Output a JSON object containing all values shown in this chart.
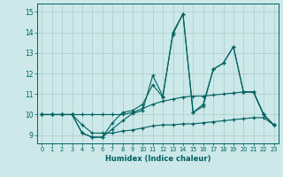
{
  "background_color": "#cce8e8",
  "grid_color": "#b0d0d0",
  "line_color": "#006060",
  "xlim": [
    -0.5,
    23.5
  ],
  "ylim": [
    8.6,
    15.4
  ],
  "xlabel": "Humidex (Indice chaleur)",
  "yticks": [
    9,
    10,
    11,
    12,
    13,
    14,
    15
  ],
  "series": [
    [
      10.0,
      10.0,
      10.0,
      10.0,
      9.1,
      8.9,
      8.9,
      9.3,
      9.7,
      10.05,
      10.2,
      11.9,
      10.9,
      13.9,
      14.9,
      10.1,
      10.4,
      12.2,
      12.5,
      13.3,
      11.1,
      11.1,
      10.0,
      9.5
    ],
    [
      10.0,
      10.0,
      10.0,
      10.0,
      9.1,
      8.9,
      8.9,
      9.6,
      10.1,
      10.2,
      10.5,
      11.45,
      10.85,
      14.0,
      14.9,
      10.1,
      10.5,
      12.2,
      12.5,
      13.3,
      11.1,
      11.1,
      10.0,
      9.5
    ],
    [
      10.0,
      10.0,
      10.0,
      10.0,
      10.0,
      10.0,
      10.0,
      10.0,
      10.0,
      10.1,
      10.3,
      10.5,
      10.65,
      10.75,
      10.85,
      10.9,
      10.9,
      10.95,
      11.0,
      11.05,
      11.1,
      11.1,
      10.0,
      9.5
    ],
    [
      10.0,
      10.0,
      10.0,
      10.0,
      9.5,
      9.1,
      9.1,
      9.1,
      9.2,
      9.25,
      9.35,
      9.45,
      9.5,
      9.5,
      9.55,
      9.55,
      9.6,
      9.65,
      9.7,
      9.75,
      9.8,
      9.85,
      9.85,
      9.5
    ]
  ]
}
